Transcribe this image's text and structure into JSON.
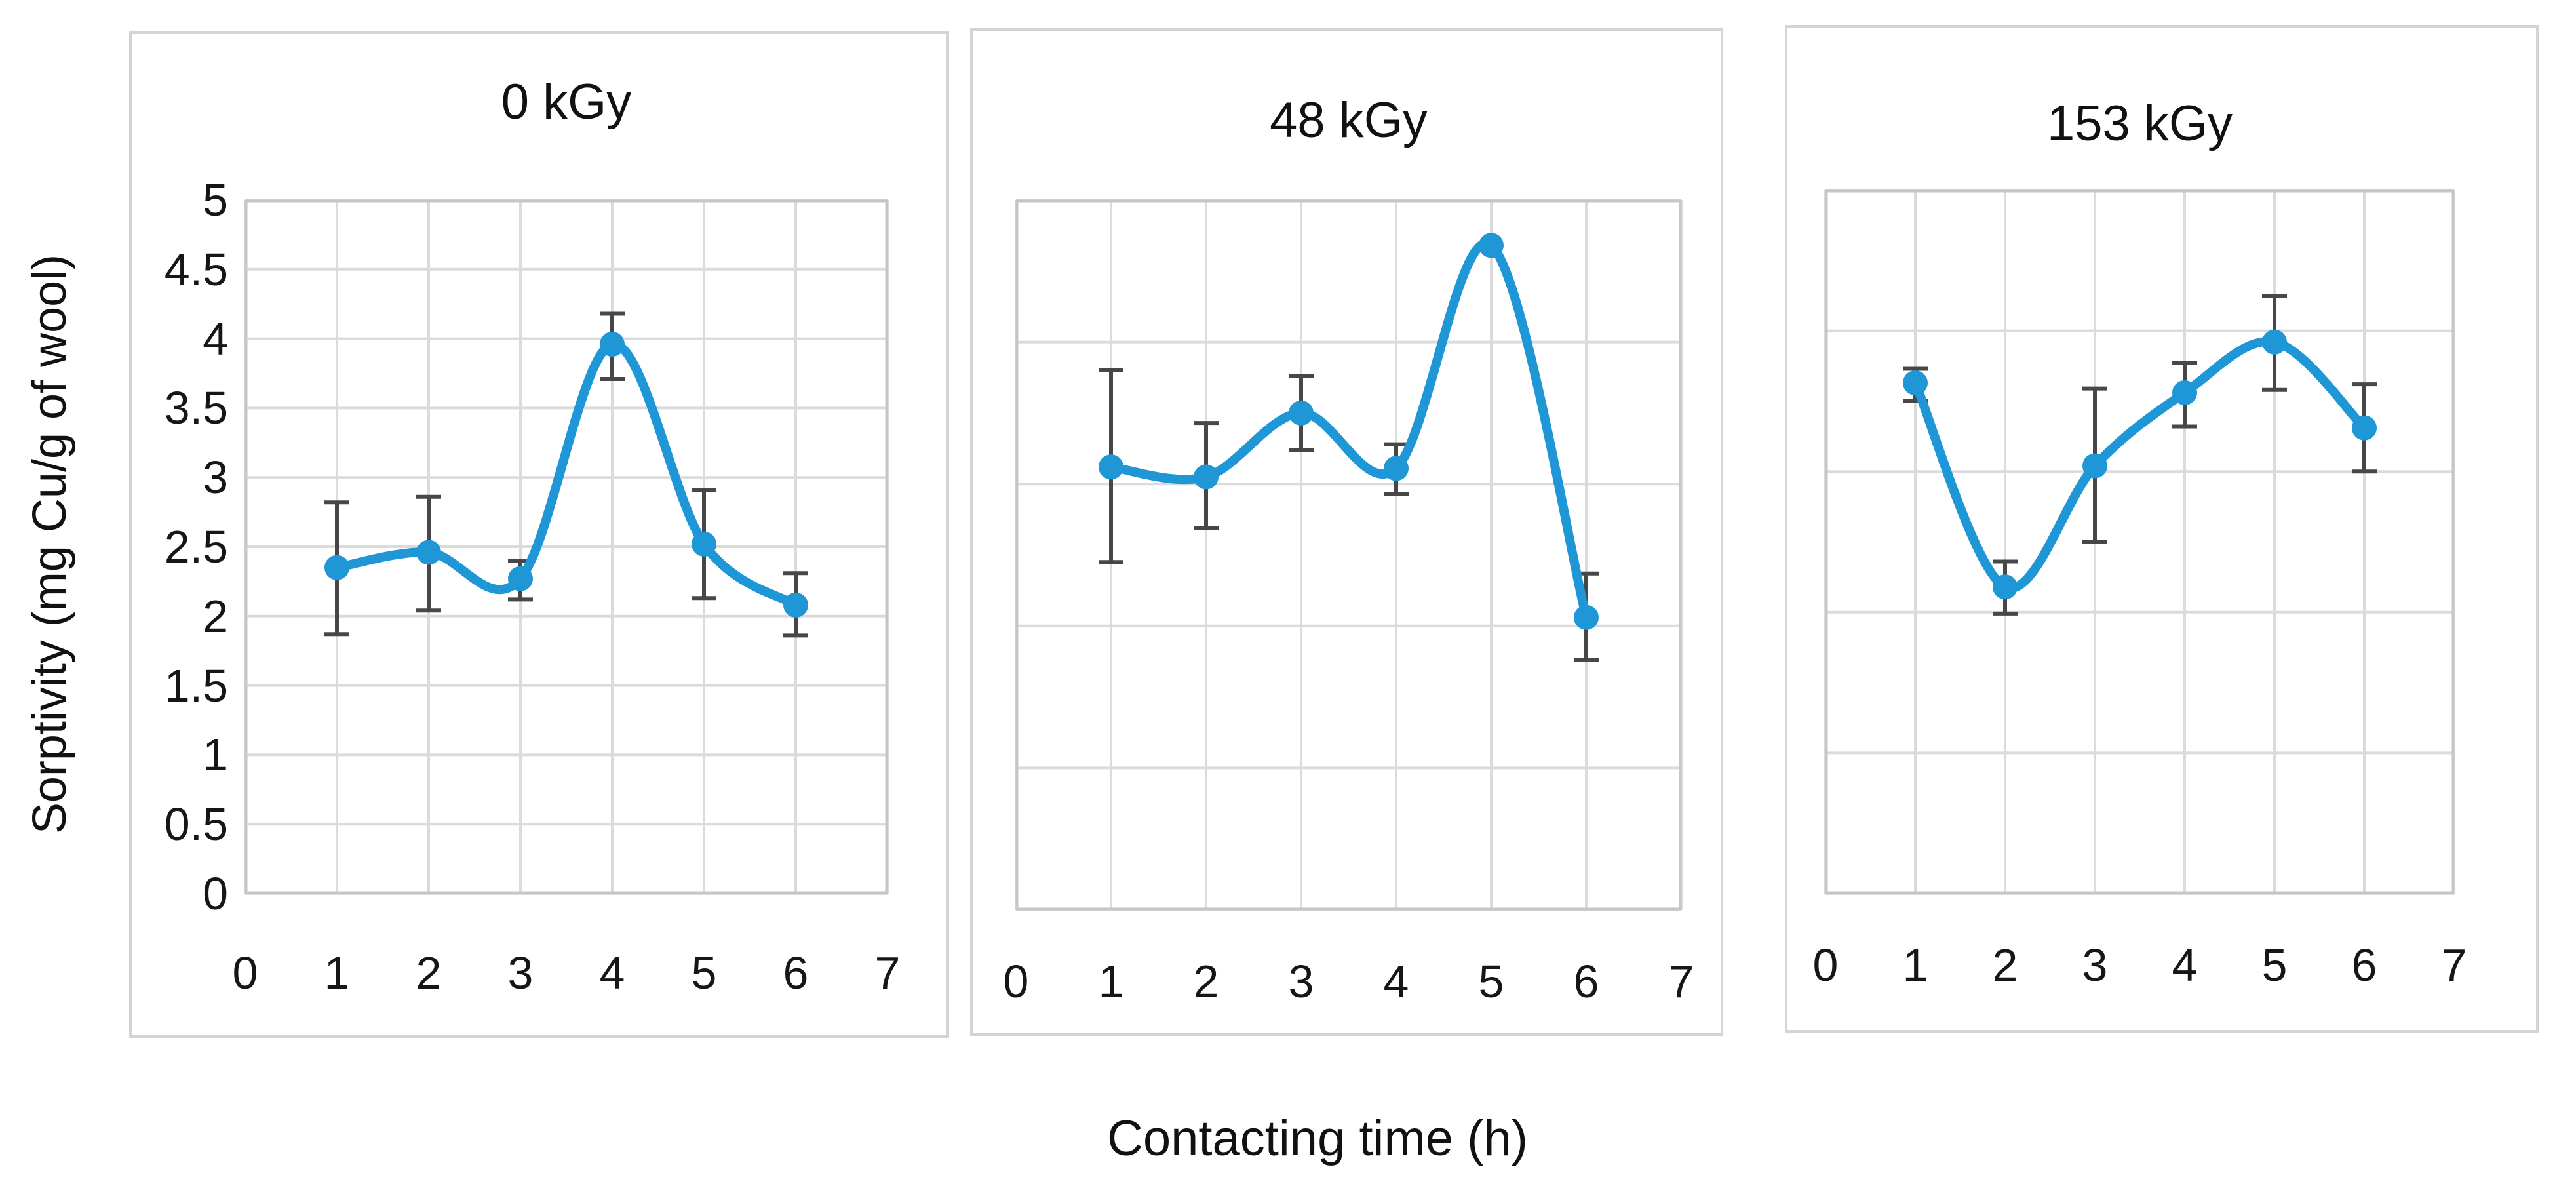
{
  "figure": {
    "x_axis_title": "Contacting time (h)",
    "y_axis_title": "Sorptivity (mg Cu/g of wool)",
    "x_tick_labels": [
      "0",
      "1",
      "2",
      "3",
      "4",
      "5",
      "6",
      "7"
    ],
    "colors": {
      "line": "#1f97d6",
      "marker": "#1f97d6",
      "error_bar": "#474747",
      "gridline": "#dbdbdb",
      "plot_border": "#c6c6c6",
      "panel_border": "#d4d4d4",
      "text": "#141414"
    }
  },
  "chart_data": [
    {
      "type": "line",
      "title": "0 kGy",
      "xlabel": "Contacting time (h)",
      "ylabel": "Sorptivity (mg Cu/g of wool)",
      "x": [
        1,
        2,
        3,
        4,
        5,
        6
      ],
      "y": [
        2.35,
        2.46,
        2.27,
        3.96,
        2.52,
        2.08
      ],
      "error_low": [
        1.87,
        2.04,
        2.12,
        3.71,
        2.13,
        1.86
      ],
      "error_high": [
        2.82,
        2.86,
        2.4,
        4.18,
        2.91,
        2.31
      ],
      "xlim": [
        0,
        7
      ],
      "ylim": [
        0,
        5
      ],
      "x_grid_step": 1,
      "y_grid_step": 0.5,
      "y_tick_labels": [
        "5",
        "4.5",
        "4",
        "3.5",
        "3",
        "2.5",
        "2",
        "1.5",
        "1",
        "0.5",
        "0"
      ],
      "show_y_tick_labels": true,
      "grid": true,
      "legend": "none"
    },
    {
      "type": "line",
      "title": "48 kGy",
      "xlabel": "Contacting time (h)",
      "x": [
        1,
        2,
        3,
        4,
        5,
        6
      ],
      "y": [
        3.12,
        3.05,
        3.5,
        3.11,
        4.68,
        2.06
      ],
      "error_low": [
        2.45,
        2.69,
        3.24,
        2.93,
        null,
        1.76
      ],
      "error_high": [
        3.8,
        3.43,
        3.76,
        3.28,
        null,
        2.37
      ],
      "xlim": [
        0,
        7
      ],
      "ylim": [
        0,
        5
      ],
      "x_grid_step": 1,
      "y_grid_step": 1,
      "y_tick_labels": [],
      "show_y_tick_labels": false,
      "grid": true,
      "legend": "none"
    },
    {
      "type": "line",
      "title": "153 kGy",
      "xlabel": "Contacting time (h)",
      "x": [
        1,
        2,
        3,
        4,
        5,
        6
      ],
      "y": [
        3.63,
        2.18,
        3.04,
        3.56,
        3.92,
        3.31
      ],
      "error_low": [
        3.5,
        1.99,
        2.5,
        3.32,
        3.58,
        3.0
      ],
      "error_high": [
        3.73,
        2.36,
        3.59,
        3.77,
        4.25,
        3.62
      ],
      "xlim": [
        0,
        7
      ],
      "ylim": [
        0,
        5
      ],
      "x_grid_step": 1,
      "y_grid_step": 1,
      "y_tick_labels": [],
      "show_y_tick_labels": false,
      "grid": true,
      "legend": "none"
    }
  ]
}
